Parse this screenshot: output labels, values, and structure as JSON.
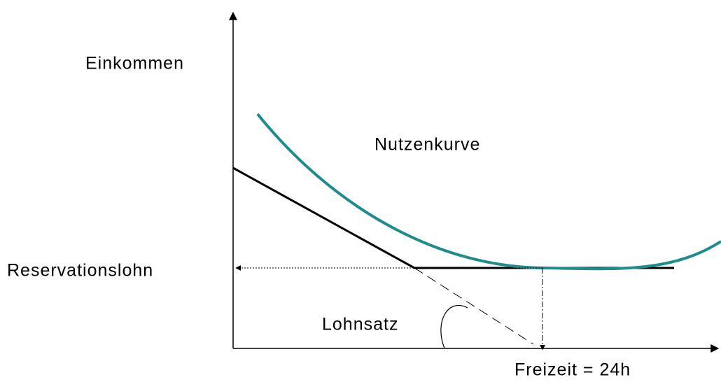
{
  "labels": {
    "y_axis": "Einkommen",
    "curve": "Nutzenkurve",
    "reservation_wage": "Reservationslohn",
    "wage_rate": "Lohnsatz",
    "x_axis": "Freizeit = 24h"
  }
}
